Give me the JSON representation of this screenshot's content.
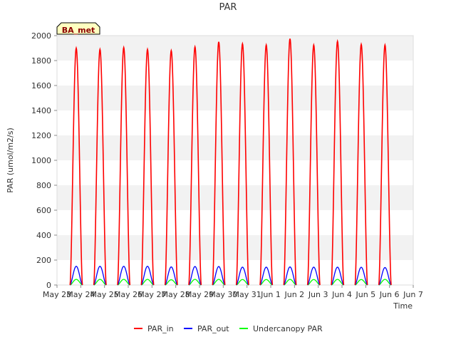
{
  "chart_data": {
    "type": "line",
    "title": "PAR",
    "xlabel": "Time",
    "ylabel": "PAR (umol/m2/s)",
    "badge": "BA_met",
    "xlim": [
      0,
      15
    ],
    "ylim": [
      0,
      2000
    ],
    "grid": "horizontal bands",
    "legend_position": "bottom",
    "x_ticks": [
      {
        "x": 0,
        "label": "May 23"
      },
      {
        "x": 1,
        "label": "May 24"
      },
      {
        "x": 2,
        "label": "May 25"
      },
      {
        "x": 3,
        "label": "May 26"
      },
      {
        "x": 4,
        "label": "May 27"
      },
      {
        "x": 5,
        "label": "May 28"
      },
      {
        "x": 6,
        "label": "May 29"
      },
      {
        "x": 7,
        "label": "May 30"
      },
      {
        "x": 8,
        "label": "May 31"
      },
      {
        "x": 9,
        "label": "Jun 1"
      },
      {
        "x": 10,
        "label": "Jun 2"
      },
      {
        "x": 11,
        "label": "Jun 3"
      },
      {
        "x": 12,
        "label": "Jun 4"
      },
      {
        "x": 13,
        "label": "Jun 5"
      },
      {
        "x": 14,
        "label": "Jun 6"
      },
      {
        "x": 15,
        "label": "Jun 7"
      }
    ],
    "y_ticks": [
      0,
      200,
      400,
      600,
      800,
      1000,
      1200,
      1400,
      1600,
      1800,
      2000
    ],
    "days": [
      "May 23",
      "May 24",
      "May 25",
      "May 26",
      "May 27",
      "May 28",
      "May 29",
      "May 30",
      "May 31",
      "Jun 1",
      "Jun 2",
      "Jun 3",
      "Jun 4",
      "Jun 5"
    ],
    "daylight_window": {
      "start_day_fraction": 0.55,
      "end_day_fraction": 1.07
    },
    "series": [
      {
        "name": "PAR_in",
        "color": "#ff0000",
        "daily_peak": [
          1900,
          1890,
          1905,
          1890,
          1880,
          1910,
          1950,
          1935,
          1925,
          1975,
          1925,
          1955,
          1930,
          1925
        ]
      },
      {
        "name": "PAR_out",
        "color": "#0000ff",
        "daily_peak": [
          150,
          150,
          150,
          150,
          145,
          148,
          148,
          143,
          143,
          145,
          143,
          143,
          142,
          140
        ]
      },
      {
        "name": "Undercanopy PAR",
        "color": "#00ff00",
        "daily_peak": [
          45,
          45,
          45,
          45,
          42,
          45,
          45,
          44,
          44,
          45,
          44,
          45,
          44,
          45
        ]
      }
    ]
  }
}
